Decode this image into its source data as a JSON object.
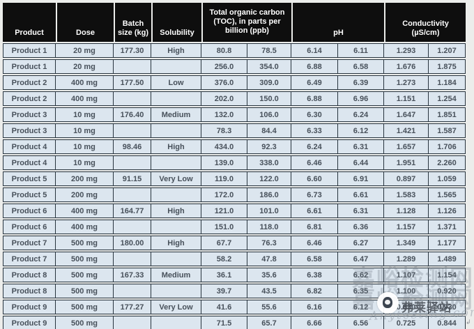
{
  "table": {
    "header": {
      "product": "Product",
      "dose": "Dose",
      "batch_size": "Batch size (kg)",
      "solubility": "Solubility",
      "toc": "Total organic carbon (TOC), in parts per billion (ppb)",
      "ph": "pH",
      "conductivity": "Conductivity (µS/cm)"
    },
    "rows": [
      [
        "Product 1",
        "20 mg",
        "177.30",
        "High",
        "80.8",
        "78.5",
        "6.14",
        "6.11",
        "1.293",
        "1.207"
      ],
      [
        "Product 1",
        "20 mg",
        "",
        "",
        "256.0",
        "354.0",
        "6.88",
        "6.58",
        "1.676",
        "1.875"
      ],
      [
        "Product 2",
        "400 mg",
        "177.50",
        "Low",
        "376.0",
        "309.0",
        "6.49",
        "6.39",
        "1.273",
        "1.184"
      ],
      [
        "Product 2",
        "400 mg",
        "",
        "",
        "202.0",
        "150.0",
        "6.88",
        "6.96",
        "1.151",
        "1.254"
      ],
      [
        "Product 3",
        "10 mg",
        "176.40",
        "Medium",
        "132.0",
        "106.0",
        "6.30",
        "6.24",
        "1.647",
        "1.851"
      ],
      [
        "Product 3",
        "10 mg",
        "",
        "",
        "78.3",
        "84.4",
        "6.33",
        "6.12",
        "1.421",
        "1.587"
      ],
      [
        "Product 4",
        "10 mg",
        "98.46",
        "High",
        "434.0",
        "92.3",
        "6.24",
        "6.31",
        "1.657",
        "1.706"
      ],
      [
        "Product 4",
        "10 mg",
        "",
        "",
        "139.0",
        "338.0",
        "6.46",
        "6.44",
        "1.951",
        "2.260"
      ],
      [
        "Product 5",
        "200 mg",
        "91.15",
        "Very Low",
        "119.0",
        "122.0",
        "6.60",
        "6.91",
        "0.897",
        "1.059"
      ],
      [
        "Product 5",
        "200 mg",
        "",
        "",
        "172.0",
        "186.0",
        "6.73",
        "6.61",
        "1.583",
        "1.565"
      ],
      [
        "Product 6",
        "400 mg",
        "164.77",
        "High",
        "121.0",
        "101.0",
        "6.61",
        "6.31",
        "1.128",
        "1.126"
      ],
      [
        "Product 6",
        "400 mg",
        "",
        "",
        "151.0",
        "118.0",
        "6.81",
        "6.36",
        "1.157",
        "1.371"
      ],
      [
        "Product 7",
        "500 mg",
        "180.00",
        "High",
        "67.7",
        "76.3",
        "6.46",
        "6.27",
        "1.349",
        "1.177"
      ],
      [
        "Product 7",
        "500 mg",
        "",
        "",
        "58.2",
        "47.8",
        "6.58",
        "6.47",
        "1.289",
        "1.489"
      ],
      [
        "Product 8",
        "500 mg",
        "167.33",
        "Medium",
        "36.1",
        "35.6",
        "6.38",
        "6.62",
        "1.107",
        "1.154"
      ],
      [
        "Product 8",
        "500 mg",
        "",
        "",
        "39.7",
        "43.5",
        "6.82",
        "6.35",
        "1.100",
        "0.920"
      ],
      [
        "Product 9",
        "500 mg",
        "177.27",
        "Very Low",
        "41.6",
        "55.6",
        "6.16",
        "6.12",
        "0.830",
        "0.930"
      ],
      [
        "Product 9",
        "500 mg",
        "",
        "",
        "71.5",
        "65.7",
        "6.66",
        "6.56",
        "0.725",
        "0.844"
      ]
    ]
  },
  "watermarks": {
    "site_cjk": "嘉峪检测网",
    "account_cjk": "弗莱驿站",
    "script": "Anytesting.com",
    "corner_mark": "↲"
  },
  "colors": {
    "header_bg": "#0e0e0e",
    "header_text": "#ffffff",
    "row_bg": "#dce6ef",
    "row_text": "#47505a",
    "border": "#27333d",
    "page_bg": "#ecedeb"
  }
}
